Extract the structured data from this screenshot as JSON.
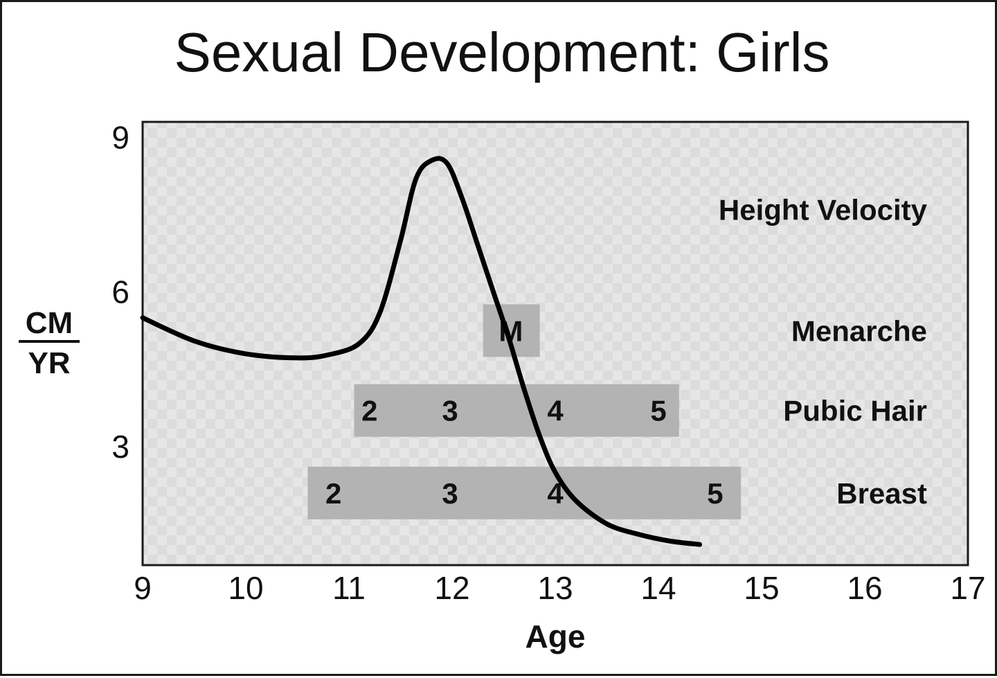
{
  "chart_data": {
    "type": "line",
    "title": "Sexual Development: Girls",
    "xlabel": "Age",
    "ylabel_numerator": "CM",
    "ylabel_denominator": "YR",
    "xlim": [
      9,
      17
    ],
    "ylim": [
      0.7,
      9.3
    ],
    "xticks": [
      9,
      10,
      11,
      12,
      13,
      14,
      15,
      16,
      17
    ],
    "yticks": [
      3,
      6,
      9
    ],
    "grid": false,
    "colors": {
      "plot_background": "#e6e6e6",
      "plot_check": "#dcdcdc",
      "band": "#b3b3b3",
      "curve": "#000000",
      "frame": "#1a1a1a"
    },
    "series": [
      {
        "name": "Height Velocity",
        "x": [
          9.0,
          9.5,
          10.0,
          10.5,
          10.8,
          11.1,
          11.3,
          11.5,
          11.65,
          11.8,
          11.95,
          12.1,
          12.25,
          12.4,
          12.55,
          12.7,
          12.85,
          13.0,
          13.2,
          13.5,
          13.8,
          14.1,
          14.4
        ],
        "y": [
          5.5,
          5.05,
          4.8,
          4.72,
          4.78,
          5.0,
          5.6,
          7.0,
          8.2,
          8.55,
          8.5,
          7.8,
          6.9,
          6.0,
          5.1,
          4.1,
          3.2,
          2.5,
          1.95,
          1.5,
          1.3,
          1.17,
          1.1
        ]
      }
    ],
    "rows": [
      {
        "label": "Menarche",
        "center_y": 5.25,
        "band": [
          12.3,
          12.85
        ],
        "stages": [
          {
            "text": "M",
            "x": 12.57
          }
        ]
      },
      {
        "label": "Pubic Hair",
        "center_y": 3.7,
        "band": [
          11.05,
          14.2
        ],
        "stages": [
          {
            "text": "2",
            "x": 11.2
          },
          {
            "text": "3",
            "x": 11.98
          },
          {
            "text": "4",
            "x": 13.0
          },
          {
            "text": "5",
            "x": 14.0
          }
        ]
      },
      {
        "label": "Breast",
        "center_y": 2.1,
        "band": [
          10.6,
          14.8
        ],
        "stages": [
          {
            "text": "2",
            "x": 10.85
          },
          {
            "text": "3",
            "x": 11.98
          },
          {
            "text": "4",
            "x": 13.0
          },
          {
            "text": "5",
            "x": 14.55
          }
        ]
      }
    ],
    "series_label": "Height Velocity",
    "series_label_y": 7.6
  }
}
